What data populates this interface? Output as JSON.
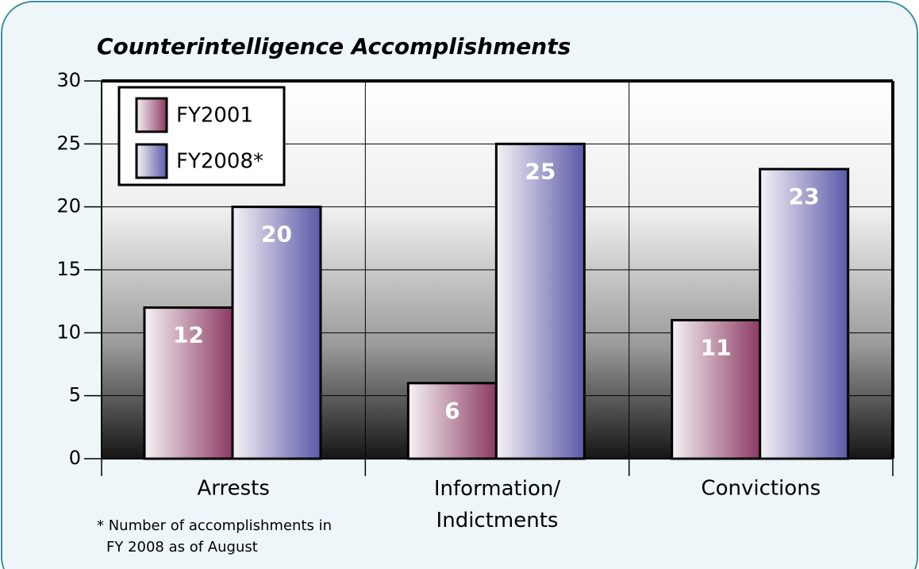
{
  "chart_data": {
    "type": "bar",
    "title": "Counterintelligence Accomplishments",
    "categories": [
      "Arrests",
      "Information/\nIndictments",
      "Convictions"
    ],
    "series": [
      {
        "name": "FY2001",
        "color": "#8b3a62",
        "values": [
          12,
          6,
          11
        ]
      },
      {
        "name": "FY2008*",
        "color": "#5a5aa8",
        "values": [
          20,
          25,
          23
        ]
      }
    ],
    "ylim": [
      0,
      30
    ],
    "yticks": [
      0,
      5,
      10,
      15,
      20,
      25,
      30
    ],
    "grid": true,
    "legend": "upper left",
    "annotation": "* Number of accomplishments in\nFY 2008 as of August"
  }
}
